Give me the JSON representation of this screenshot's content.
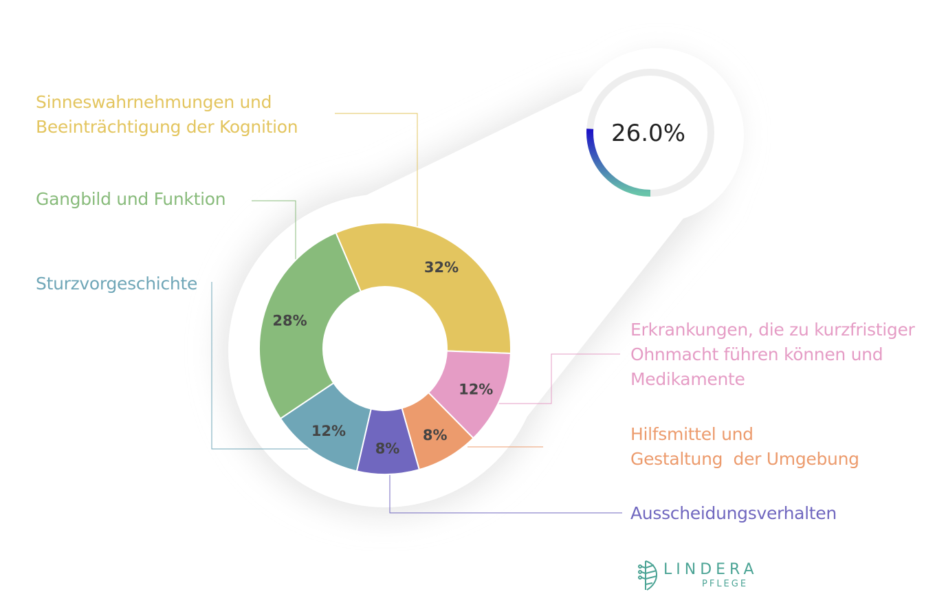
{
  "chart_data": {
    "type": "pie",
    "variant": "donut",
    "categories": [
      "Sinneswahrnehmungen und\nBeeinträchtigung der Kognition",
      "Erkrankungen, die zu kurzfristiger\nOhnmacht führen können und\nMedikamente",
      "Hilfsmittel und\nGestaltung  der Umgebung",
      "Ausscheidungsverhalten",
      "Sturzvorgeschichte",
      "Gangbild und Funktion"
    ],
    "values": [
      32,
      12,
      8,
      8,
      12,
      28
    ],
    "value_labels": [
      "32%",
      "12%",
      "8%",
      "8%",
      "12%",
      "28%"
    ],
    "colors": [
      "#e3c55f",
      "#e59cc5",
      "#ec9b6d",
      "#7067bf",
      "#6fa6b7",
      "#88bb7b"
    ],
    "label_colors": [
      "#e3c55f",
      "#e59cc5",
      "#ec9b6d",
      "#7067bf",
      "#6fa6b7",
      "#88bb7b"
    ]
  },
  "gauge": {
    "value": 26.0,
    "label": "26.0%",
    "track_color": "#eeeeee",
    "gradient": [
      "#1a0dc7",
      "#68c4a9"
    ]
  },
  "logo": {
    "name": "LINDERA",
    "sub": "PFLEGE",
    "color": "#4aa394"
  }
}
